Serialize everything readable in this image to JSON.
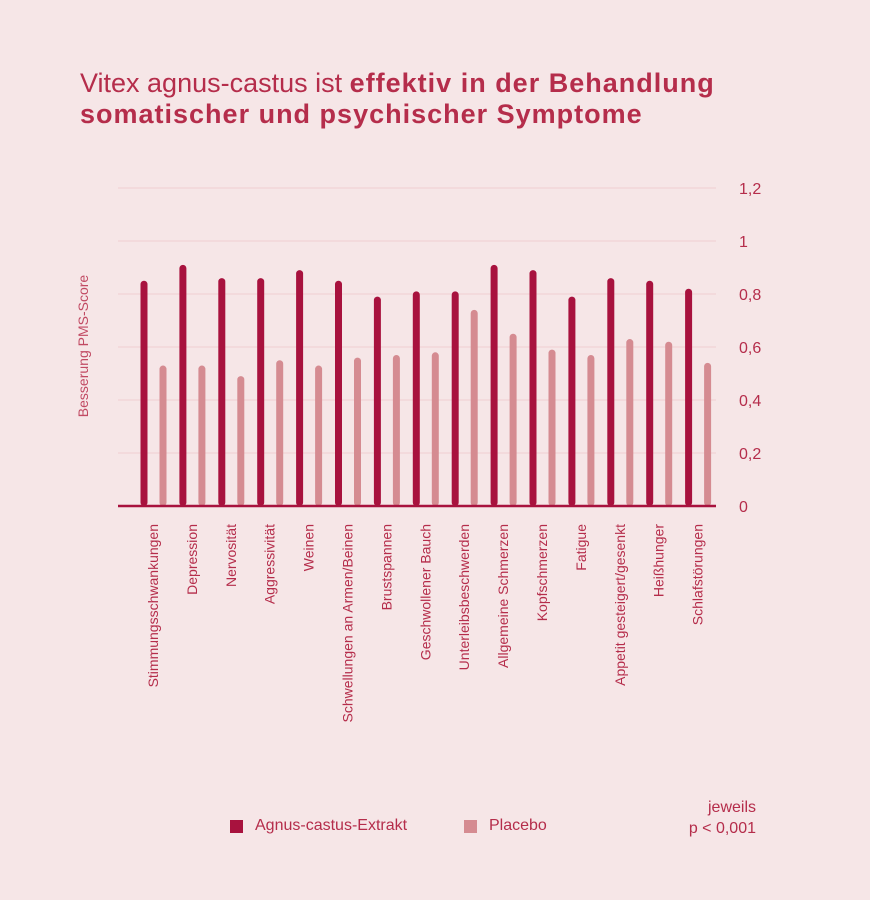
{
  "title": {
    "light": "Vitex agnus-castus ist",
    "bold_line1": "effektiv in der Behandlung",
    "bold_line2": "somatischer und psychischer Symptome"
  },
  "colors": {
    "extract": "#a8123e",
    "placebo": "#d58b91",
    "text": "#b52d4b",
    "grid": "#f0cdd1",
    "axis": "#a8123e"
  },
  "footnote": {
    "line1": "jeweils",
    "line2": "p < 0,001"
  },
  "chart_data": {
    "type": "bar",
    "ylabel": "Besserung PMS-Score",
    "ylim": [
      0,
      1.2
    ],
    "yticks": [
      {
        "value": 0,
        "label": "0"
      },
      {
        "value": 0.2,
        "label": "0,2"
      },
      {
        "value": 0.4,
        "label": "0,4"
      },
      {
        "value": 0.6,
        "label": "0,6"
      },
      {
        "value": 0.8,
        "label": "0,8"
      },
      {
        "value": 1.0,
        "label": "1"
      },
      {
        "value": 1.2,
        "label": "1,2"
      }
    ],
    "grid": true,
    "y_axis_position": "right",
    "legend_position": "bottom",
    "categories": [
      "Stimmungsschwankungen",
      "Depression",
      "Nervosität",
      "Aggressivität",
      "Weinen",
      "Schwellungen an Armen/Beinen",
      "Brustspannen",
      "Geschwollener Bauch",
      "Unterleibsbeschwerden",
      "Allgemeine Schmerzen",
      "Kopfschmerzen",
      "Fatigue",
      "Appetit gesteigert/gesenkt",
      "Heißhunger",
      "Schlafstörungen"
    ],
    "series": [
      {
        "name": "Agnus-castus-Extrakt",
        "color": "#a8123e",
        "values": [
          0.85,
          0.91,
          0.86,
          0.86,
          0.89,
          0.85,
          0.79,
          0.81,
          0.81,
          0.91,
          0.89,
          0.79,
          0.86,
          0.85,
          0.82
        ]
      },
      {
        "name": "Placebo",
        "color": "#d58b91",
        "values": [
          0.53,
          0.53,
          0.49,
          0.55,
          0.53,
          0.56,
          0.57,
          0.58,
          0.74,
          0.65,
          0.59,
          0.57,
          0.63,
          0.62,
          0.54
        ]
      }
    ]
  }
}
